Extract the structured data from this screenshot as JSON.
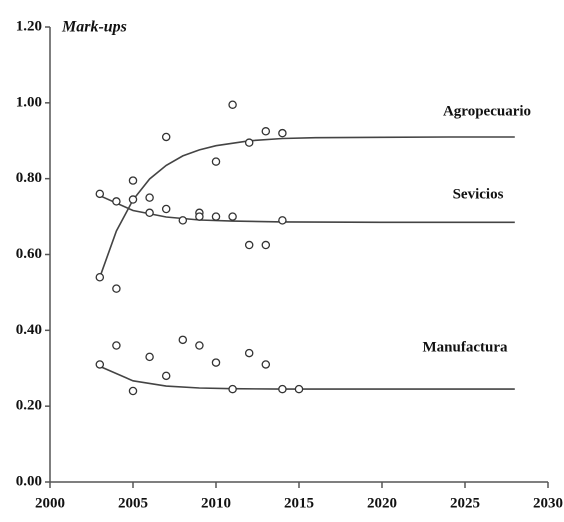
{
  "chart_data": {
    "type": "scatter",
    "y_label": "Mark-ups",
    "xlim": [
      2000,
      2030
    ],
    "xticks": [
      2000,
      2005,
      2010,
      2015,
      2020,
      2025,
      2030
    ],
    "ylim": [
      0,
      1.2
    ],
    "yticks": [
      {
        "value": 0,
        "label": "0.00"
      },
      {
        "value": 0.2,
        "label": "0.20"
      },
      {
        "value": 0.4,
        "label": "0.40"
      },
      {
        "value": 0.6,
        "label": "0.60"
      },
      {
        "value": 0.8,
        "label": "0.80"
      },
      {
        "value": 1.0,
        "label": "1.00"
      },
      {
        "value": 1.2,
        "label": "1.20"
      }
    ],
    "grid": false,
    "marker_color": "#ffffff",
    "line_color": "#444444",
    "series": [
      {
        "name": "Agropecuario",
        "x": [
          2003,
          2004,
          2005,
          2007,
          2010,
          2011,
          2012,
          2013,
          2014
        ],
        "values": [
          0.54,
          0.51,
          0.795,
          0.91,
          0.845,
          0.995,
          0.895,
          0.925,
          0.92
        ],
        "fit_x": [
          2003,
          2004,
          2005,
          2006,
          2007,
          2008,
          2009,
          2010,
          2012,
          2014,
          2016,
          2020,
          2024,
          2028
        ],
        "fit_values": [
          0.54,
          0.662,
          0.744,
          0.799,
          0.835,
          0.86,
          0.876,
          0.887,
          0.9,
          0.906,
          0.908,
          0.909,
          0.91,
          0.91
        ]
      },
      {
        "name": "Sevicios",
        "x": [
          2003,
          2004,
          2005,
          2006,
          2006,
          2007,
          2008,
          2009,
          2009,
          2010,
          2011,
          2012,
          2013,
          2014
        ],
        "values": [
          0.76,
          0.74,
          0.745,
          0.75,
          0.71,
          0.72,
          0.69,
          0.71,
          0.7,
          0.7,
          0.7,
          0.625,
          0.625,
          0.69
        ],
        "fit_x": [
          2003,
          2005,
          2007,
          2009,
          2011,
          2014,
          2020,
          2028
        ],
        "fit_values": [
          0.755,
          0.716,
          0.699,
          0.691,
          0.688,
          0.686,
          0.685,
          0.685
        ]
      },
      {
        "name": "Manufactura",
        "x": [
          2003,
          2004,
          2005,
          2006,
          2007,
          2008,
          2009,
          2010,
          2011,
          2012,
          2013,
          2014,
          2015
        ],
        "values": [
          0.31,
          0.36,
          0.24,
          0.33,
          0.28,
          0.375,
          0.36,
          0.315,
          0.245,
          0.34,
          0.31,
          0.245,
          0.245
        ],
        "fit_x": [
          2003,
          2005,
          2007,
          2009,
          2011,
          2014,
          2020,
          2028
        ],
        "fit_values": [
          0.305,
          0.267,
          0.253,
          0.248,
          0.246,
          0.245,
          0.245,
          0.245
        ]
      }
    ]
  }
}
